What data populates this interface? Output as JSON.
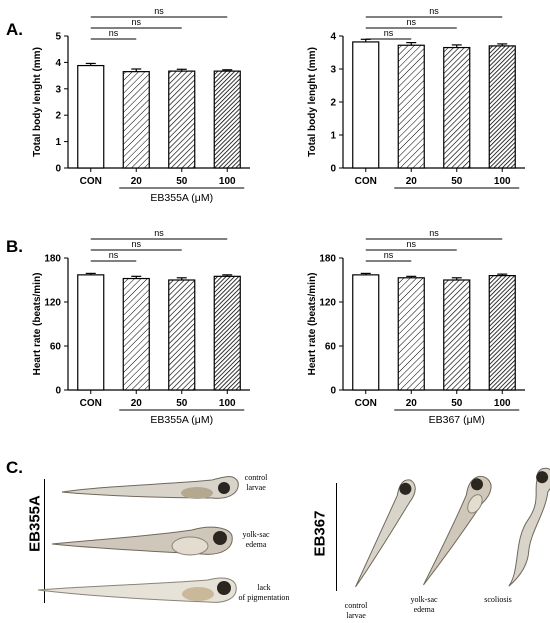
{
  "panels": {
    "a": "A.",
    "b": "B.",
    "c": "C."
  },
  "chart_data": [
    {
      "type": "bar",
      "categories": [
        "CON",
        "20",
        "50",
        "100"
      ],
      "values": [
        3.88,
        3.65,
        3.67,
        3.67
      ],
      "errors": [
        0.08,
        0.1,
        0.07,
        0.05
      ],
      "ylabel": "Total body lenght (mm)",
      "ylim": [
        0,
        5
      ],
      "yticks": [
        0,
        1,
        2,
        3,
        4,
        5
      ],
      "group_label": "EB355A (μM)",
      "significance": [
        "ns",
        "ns",
        "ns"
      ],
      "grid": false
    },
    {
      "type": "bar",
      "categories": [
        "CON",
        "20",
        "50",
        "100"
      ],
      "values": [
        3.82,
        3.72,
        3.65,
        3.7
      ],
      "errors": [
        0.08,
        0.08,
        0.08,
        0.06
      ],
      "ylabel": "Total body lenght (mm)",
      "ylim": [
        0,
        4
      ],
      "yticks": [
        0,
        1,
        2,
        3,
        4
      ],
      "group_label": "",
      "significance": [
        "ns",
        "ns",
        "ns"
      ],
      "grid": false
    },
    {
      "type": "bar",
      "categories": [
        "CON",
        "20",
        "50",
        "100"
      ],
      "values": [
        157,
        152,
        150,
        155
      ],
      "errors": [
        2,
        3,
        3,
        2
      ],
      "ylabel": "Heart rate (beats/min)",
      "ylim": [
        0,
        180
      ],
      "yticks": [
        0,
        60,
        120,
        180
      ],
      "group_label": "EB355A (μM)",
      "significance": [
        "ns",
        "ns",
        "ns"
      ],
      "grid": false
    },
    {
      "type": "bar",
      "categories": [
        "CON",
        "20",
        "50",
        "100"
      ],
      "values": [
        157,
        153,
        150,
        156
      ],
      "errors": [
        2,
        2,
        3,
        2
      ],
      "ylabel": "Heart rate (beats/min)",
      "ylim": [
        0,
        180
      ],
      "yticks": [
        0,
        60,
        120,
        180
      ],
      "group_label": "EB367 (μM)",
      "significance": [
        "ns",
        "ns",
        "ns"
      ],
      "grid": false
    }
  ],
  "photos_left": {
    "side_label": "EB355A",
    "labels": [
      "control\nlarvae",
      "yolk-sac\nedema",
      "lack\nof pigmentation"
    ]
  },
  "photos_right": {
    "side_label": "EB367",
    "labels": [
      "control\nlarvae",
      "yolk-sac\nedema",
      "scoliosis"
    ]
  },
  "colors": {
    "bar_outline": "#000000",
    "con_fill": "#ffffff",
    "larva_body": "#8a8478",
    "larva_dark": "#2b2620"
  }
}
